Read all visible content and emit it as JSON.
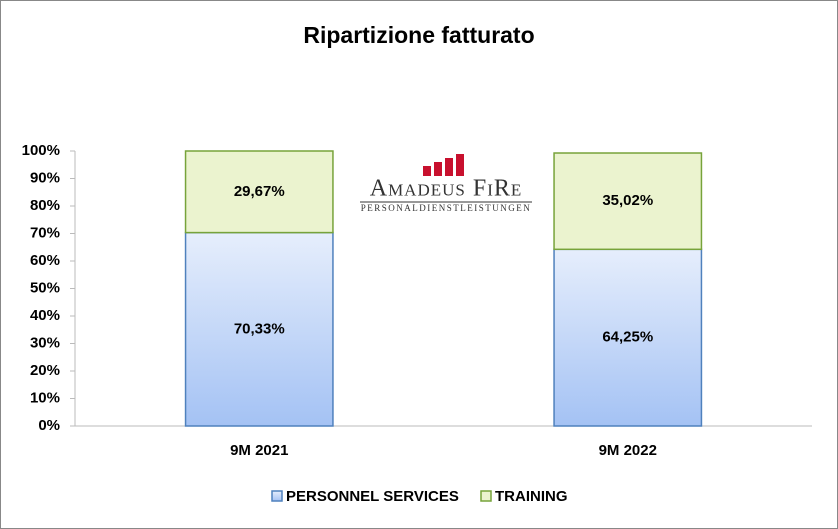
{
  "chart_data": {
    "type": "stacked_bar",
    "title": "Ripartizione  fatturato",
    "categories": [
      "9M 2021",
      "9M 2022"
    ],
    "series": [
      {
        "name": "PERSONNEL SERVICES",
        "color": "#a4c2f4",
        "values": [
          70.33,
          64.25
        ],
        "value_labels": [
          "70,33%",
          "64,25%"
        ]
      },
      {
        "name": "TRAINING",
        "color": "#ebf3cf",
        "values": [
          29.67,
          35.02
        ],
        "value_labels": [
          "29,67%",
          "35,02%"
        ]
      }
    ],
    "ylim": [
      0,
      100
    ],
    "yticks": [
      {
        "value": 0,
        "label": "0%"
      },
      {
        "value": 10,
        "label": "10%"
      },
      {
        "value": 20,
        "label": "20%"
      },
      {
        "value": 30,
        "label": "30%"
      },
      {
        "value": 40,
        "label": "40%"
      },
      {
        "value": 50,
        "label": "50%"
      },
      {
        "value": 60,
        "label": "60%"
      },
      {
        "value": 70,
        "label": "70%"
      },
      {
        "value": 80,
        "label": "80%"
      },
      {
        "value": 90,
        "label": "90%"
      },
      {
        "value": 100,
        "label": "100%"
      }
    ],
    "grid": false,
    "legend": "bottom"
  },
  "logo": {
    "name": "Amadeus FiRe",
    "tagline": "PERSONALDIENSTLEISTUNGEN"
  }
}
